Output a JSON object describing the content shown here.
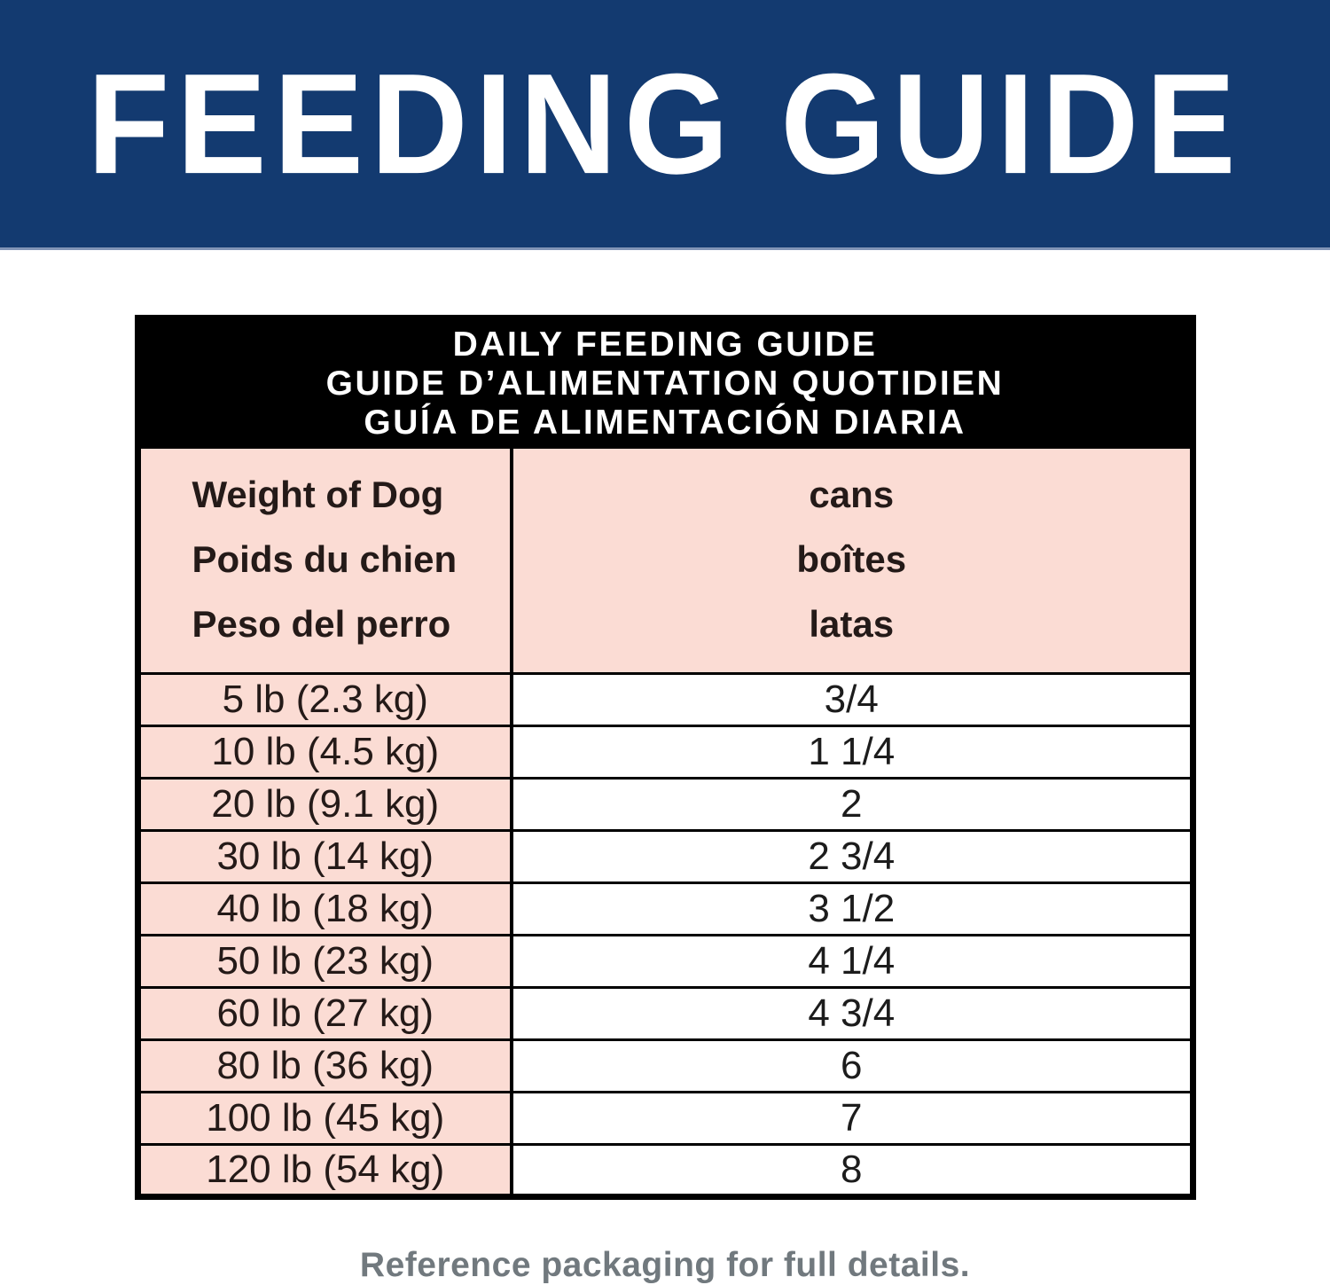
{
  "banner": {
    "title": "FEEDING GUIDE",
    "bg_color": "#133a70",
    "text_color": "#ffffff"
  },
  "table": {
    "header_lines": [
      "DAILY FEEDING GUIDE",
      "GUIDE D’ALIMENTATION QUOTIDIEN",
      "GUÍA DE ALIMENTACIÓN DIARIA"
    ],
    "columns": {
      "weight": [
        "Weight of Dog",
        "Poids du chien",
        "Peso del perro"
      ],
      "cans": [
        "cans",
        "boîtes",
        "latas"
      ]
    },
    "rows": [
      {
        "weight": "5 lb (2.3 kg)",
        "cans": "3/4"
      },
      {
        "weight": "10 lb (4.5 kg)",
        "cans": "1 1/4"
      },
      {
        "weight": "20 lb (9.1 kg)",
        "cans": "2"
      },
      {
        "weight": "30 lb (14 kg)",
        "cans": "2 3/4"
      },
      {
        "weight": "40 lb (18 kg)",
        "cans": "3 1/2"
      },
      {
        "weight": "50 lb (23 kg)",
        "cans": "4 1/4"
      },
      {
        "weight": "60 lb (27 kg)",
        "cans": "4 3/4"
      },
      {
        "weight": "80 lb (36 kg)",
        "cans": "6"
      },
      {
        "weight": "100 lb (45 kg)",
        "cans": "7"
      },
      {
        "weight": "120 lb (54 kg)",
        "cans": "8"
      }
    ],
    "colors": {
      "header_bg": "#000000",
      "header_text": "#ffffff",
      "pink": "#fbdcd4",
      "border": "#000000"
    }
  },
  "footer": {
    "note": "Reference packaging for full details."
  }
}
